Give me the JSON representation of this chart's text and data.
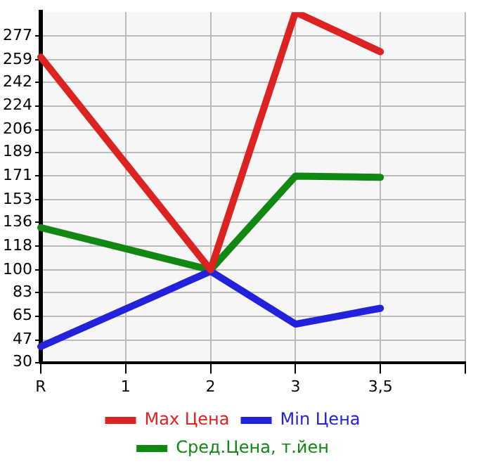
{
  "chart_data": {
    "type": "line",
    "categories": [
      "R",
      "1",
      "2",
      "3",
      "3,5",
      null
    ],
    "series": [
      {
        "name": "Max Цена",
        "color": "#dd2222",
        "values": [
          261,
          null,
          100,
          295,
          265,
          null
        ]
      },
      {
        "name": "Min Цена",
        "color": "#2222dd",
        "values": [
          42,
          null,
          99,
          59,
          71,
          null
        ]
      },
      {
        "name": "Сред.Цена, т.йен",
        "color": "#118811",
        "values": [
          132,
          null,
          100,
          171,
          170,
          null
        ]
      }
    ],
    "ylim": [
      30,
      295
    ],
    "yticks": [
      30,
      47,
      65,
      83,
      100,
      118,
      136,
      153,
      171,
      189,
      206,
      224,
      242,
      259,
      277
    ],
    "grid": true,
    "legend": "bottom",
    "marker": "none",
    "line_style": "solid"
  }
}
